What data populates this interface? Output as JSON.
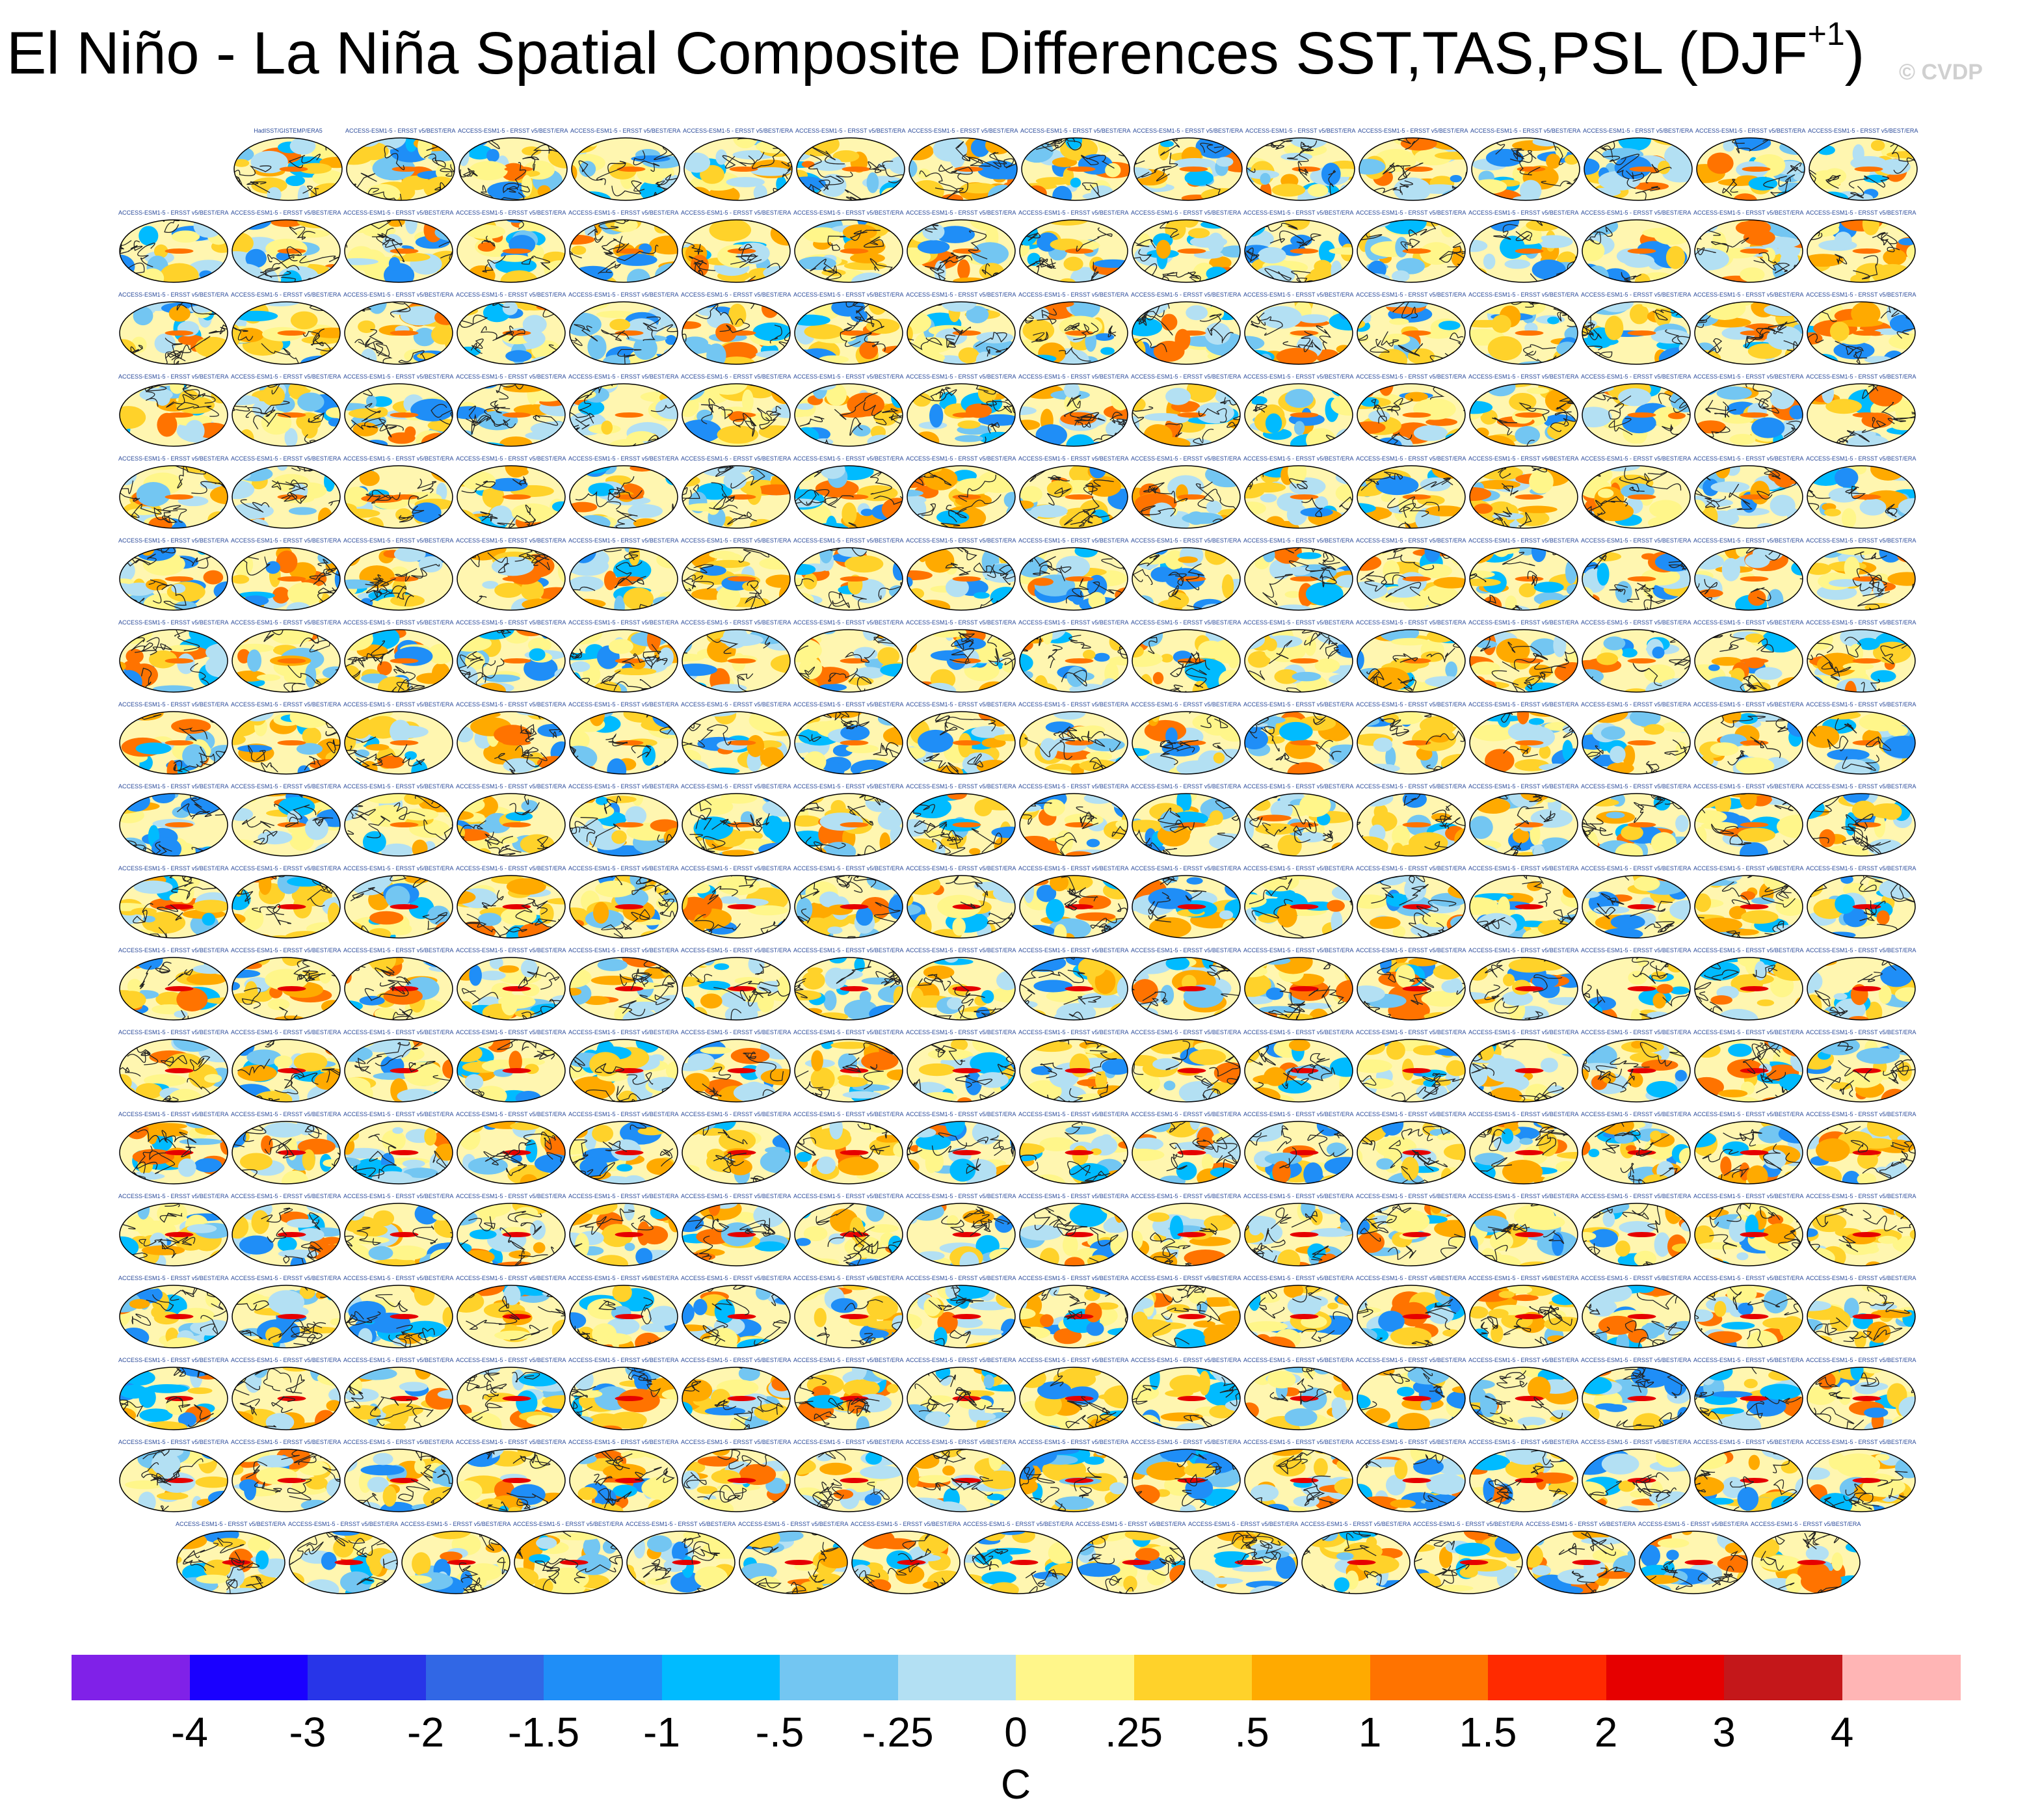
{
  "chart_data": {
    "type": "heatmap",
    "title_main": "El Niño - La Niña Spatial Composite Differences SST,TAS,PSL (DJF",
    "title_sup": "+1",
    "title_close": ")",
    "watermark": "© CVDP",
    "panel_grid": {
      "description": "Small multiples of global composite difference maps",
      "rows": 18,
      "row_counts": [
        15,
        16,
        16,
        16,
        16,
        16,
        16,
        16,
        16,
        16,
        16,
        16,
        16,
        16,
        16,
        16,
        16,
        15
      ]
    },
    "first_panel_label": "HadISST/GISTEMP/ERA5",
    "panel_label_template": "ACCESS-ESM1-5 - ERSST v5/BEST/ERA5",
    "colorbar": {
      "unit": "C",
      "colors": [
        "#8021e8",
        "#1a00ff",
        "#2835e8",
        "#3167e5",
        "#1f8ef7",
        "#00bbff",
        "#73c6f2",
        "#b3e0f3",
        "#fff68a",
        "#ffd22a",
        "#ffaa00",
        "#ff7300",
        "#ff2a00",
        "#e60000",
        "#c4171a",
        "#ffb5b5"
      ],
      "tick_labels": [
        "-4",
        "-3",
        "-2",
        "-1.5",
        "-1",
        "-.5",
        "-.25",
        "0",
        ".25",
        ".5",
        "1",
        "1.5",
        "2",
        "3",
        "4"
      ]
    }
  }
}
